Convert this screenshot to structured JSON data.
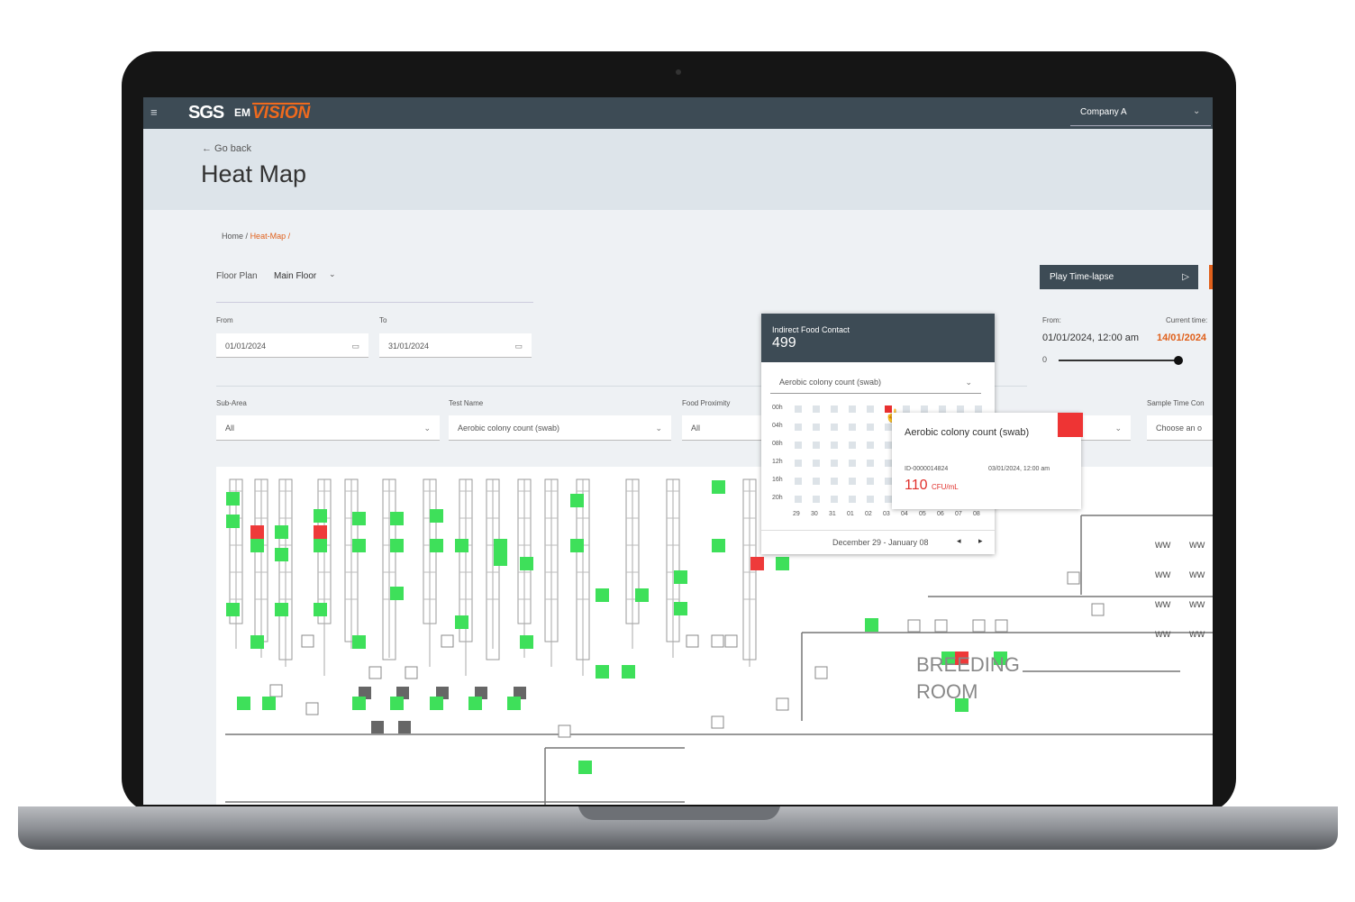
{
  "header": {
    "brand": "SGS",
    "product_prefix": "EM",
    "product": "VISION",
    "company": "Company A"
  },
  "page": {
    "back": "← Go back",
    "title": "Heat Map"
  },
  "breadcrumb": {
    "items": [
      "Home",
      "Heat-Map"
    ],
    "separator": "/"
  },
  "filters": {
    "floor_plan_label": "Floor Plan",
    "floor_plan": "Main Floor",
    "from_label": "From",
    "from": "01/01/2024",
    "to_label": "To",
    "to": "31/01/2024",
    "sub_area_label": "Sub-Area",
    "sub_area": "All",
    "test_name_label": "Test Name",
    "test_name": "Aerobic colony count (swab)",
    "food_proximity_label": "Food Proximity",
    "food_proximity": "All",
    "sample_time_label": "Sample Time Con",
    "sample_time": "Choose an o"
  },
  "timelapse": {
    "button": "Play Time-lapse",
    "from_label": "From:",
    "from": "01/01/2024, 12:00 am",
    "current_label": "Current time:",
    "current": "14/01/2024",
    "slider_start": "0"
  },
  "popup": {
    "category": "Indirect Food Contact",
    "count": 499,
    "test": "Aerobic colony count (swab)",
    "hours": [
      "00h",
      "04h",
      "08h",
      "12h",
      "16h",
      "20h"
    ],
    "days": [
      "29",
      "30",
      "31",
      "01",
      "02",
      "03",
      "04",
      "05",
      "06",
      "07",
      "08"
    ],
    "range": "December 29 - January 08"
  },
  "tooltip": {
    "test": "Aerobic colony count (swab)",
    "id": "ID-0000014824",
    "date": "03/01/2024, 12:00 am",
    "value": "110",
    "unit": "CFU/mL"
  },
  "floor_plan": {
    "room_label": [
      "BREEDING",
      "ROOM"
    ]
  }
}
